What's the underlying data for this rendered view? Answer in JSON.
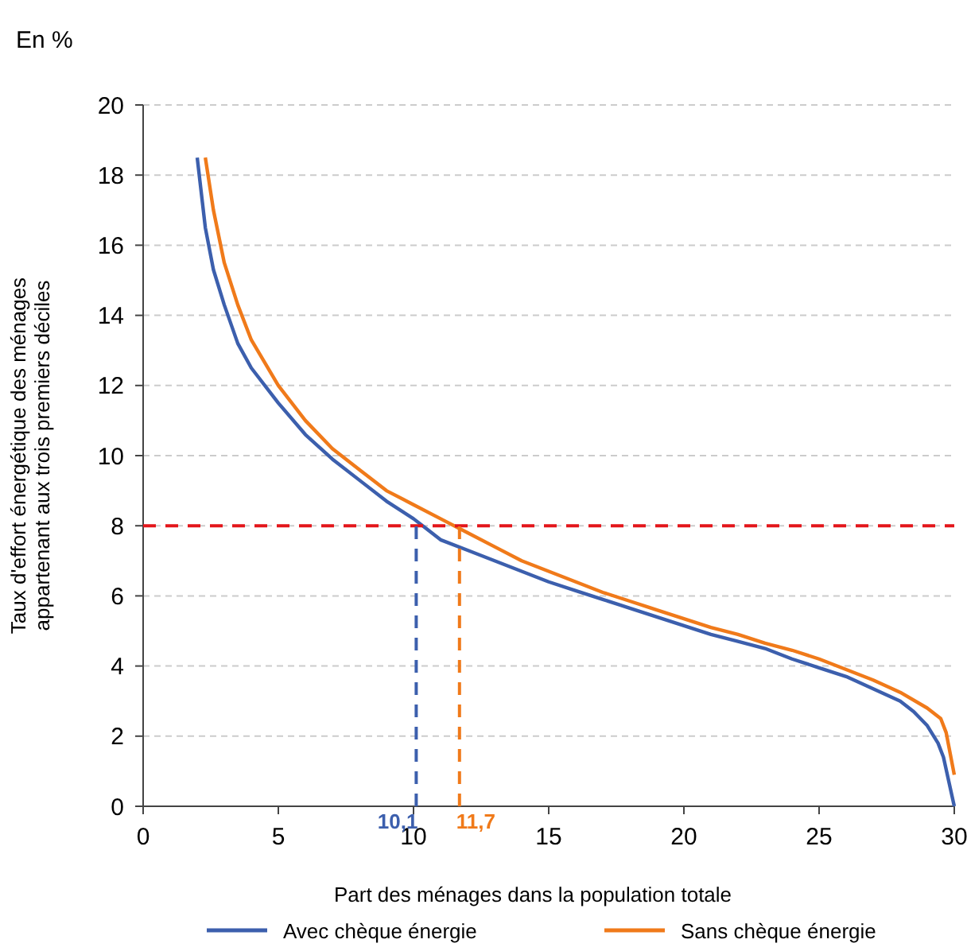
{
  "chart_data": {
    "type": "line",
    "subtitle": "En %",
    "xlabel": "Part des ménages dans la population totale",
    "ylabel": "Taux d'effort énergétique des ménages\nappartenant aux trois premiers déciles",
    "xlim": [
      0,
      30
    ],
    "xticks": [
      0,
      5,
      10,
      15,
      20,
      25,
      30
    ],
    "ylim": [
      0,
      20
    ],
    "yticks": [
      0,
      2,
      4,
      6,
      8,
      10,
      12,
      14,
      16,
      18,
      20
    ],
    "grid": "y",
    "legend": "bottom",
    "marker": "none",
    "line_style": "solid",
    "series": [
      {
        "name": "Avec chèque énergie",
        "color": "#3c5fad",
        "x": [
          2.0,
          2.3,
          2.6,
          3,
          3.5,
          4,
          5,
          6,
          7,
          8,
          9,
          10,
          10.5,
          11,
          12,
          13,
          14,
          15,
          16,
          17,
          18,
          19,
          20,
          21,
          22,
          23,
          24,
          25,
          26,
          27,
          28,
          28.5,
          29,
          29.4,
          29.6,
          30
        ],
        "values": [
          18.5,
          16.5,
          15.3,
          14.3,
          13.2,
          12.5,
          11.5,
          10.6,
          9.9,
          9.3,
          8.7,
          8.2,
          7.9,
          7.6,
          7.3,
          7.0,
          6.7,
          6.4,
          6.15,
          5.9,
          5.65,
          5.4,
          5.15,
          4.9,
          4.7,
          4.5,
          4.2,
          3.95,
          3.7,
          3.35,
          3.0,
          2.7,
          2.3,
          1.8,
          1.4,
          0
        ]
      },
      {
        "name": "Sans chèque énergie",
        "color": "#f07a1a",
        "x": [
          2.3,
          2.6,
          3,
          3.5,
          4,
          5,
          6,
          7,
          8,
          9,
          10,
          11,
          12,
          13,
          14,
          15,
          16,
          17,
          18,
          19,
          20,
          21,
          22,
          23,
          24,
          25,
          26,
          27,
          28,
          29,
          29.5,
          29.7,
          30
        ],
        "values": [
          18.5,
          17,
          15.5,
          14.3,
          13.3,
          12.0,
          11.0,
          10.2,
          9.6,
          9.0,
          8.6,
          8.2,
          7.8,
          7.4,
          7.0,
          6.7,
          6.4,
          6.1,
          5.85,
          5.6,
          5.35,
          5.1,
          4.9,
          4.65,
          4.45,
          4.2,
          3.9,
          3.6,
          3.25,
          2.8,
          2.5,
          2.1,
          0.9
        ]
      }
    ],
    "ref_lines": [
      {
        "axis": "y",
        "value": 8,
        "color": "#e3161b",
        "line_style": "dashed"
      },
      {
        "axis": "x",
        "value": 10.1,
        "label": "10,1",
        "color": "#3c5fad",
        "line_style": "dashed"
      },
      {
        "axis": "x",
        "value": 11.7,
        "label": "11,7",
        "color": "#f07a1a",
        "line_style": "dashed"
      }
    ]
  }
}
